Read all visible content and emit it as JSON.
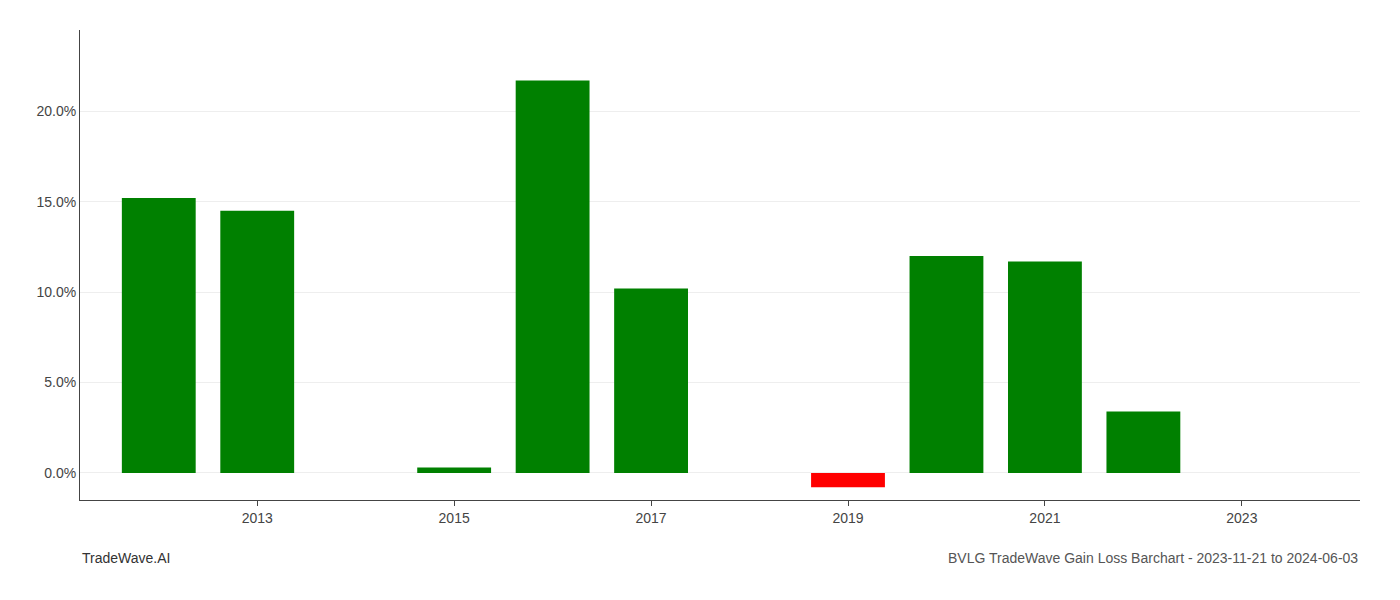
{
  "chart_data": {
    "type": "bar",
    "title": "BVLG TradeWave Gain Loss Barchart - 2023-11-21 to 2024-06-03",
    "annotations": [
      {
        "text": "TradeWave.AI"
      }
    ],
    "x": [
      2012,
      2013,
      2015,
      2016,
      2017,
      2019,
      2020,
      2021,
      2022
    ],
    "values": [
      0.152,
      0.145,
      0.003,
      0.217,
      0.102,
      -0.008,
      0.12,
      0.117,
      0.034
    ],
    "colors": [
      "#008000",
      "#008000",
      "#008000",
      "#008000",
      "#008000",
      "#ff0000",
      "#008000",
      "#008000",
      "#008000"
    ],
    "xlim": [
      2011.2,
      2024.2
    ],
    "xticks": [
      2013,
      2015,
      2017,
      2019,
      2021,
      2023
    ],
    "ylim": [
      -0.015,
      0.245
    ],
    "yticks": [
      {
        "value": 0.0,
        "label": "0.0%"
      },
      {
        "value": 0.05,
        "label": "5.0%"
      },
      {
        "value": 0.1,
        "label": "10.0%"
      },
      {
        "value": 0.15,
        "label": "15.0%"
      },
      {
        "value": 0.2,
        "label": "20.0%"
      }
    ],
    "grid": true
  }
}
